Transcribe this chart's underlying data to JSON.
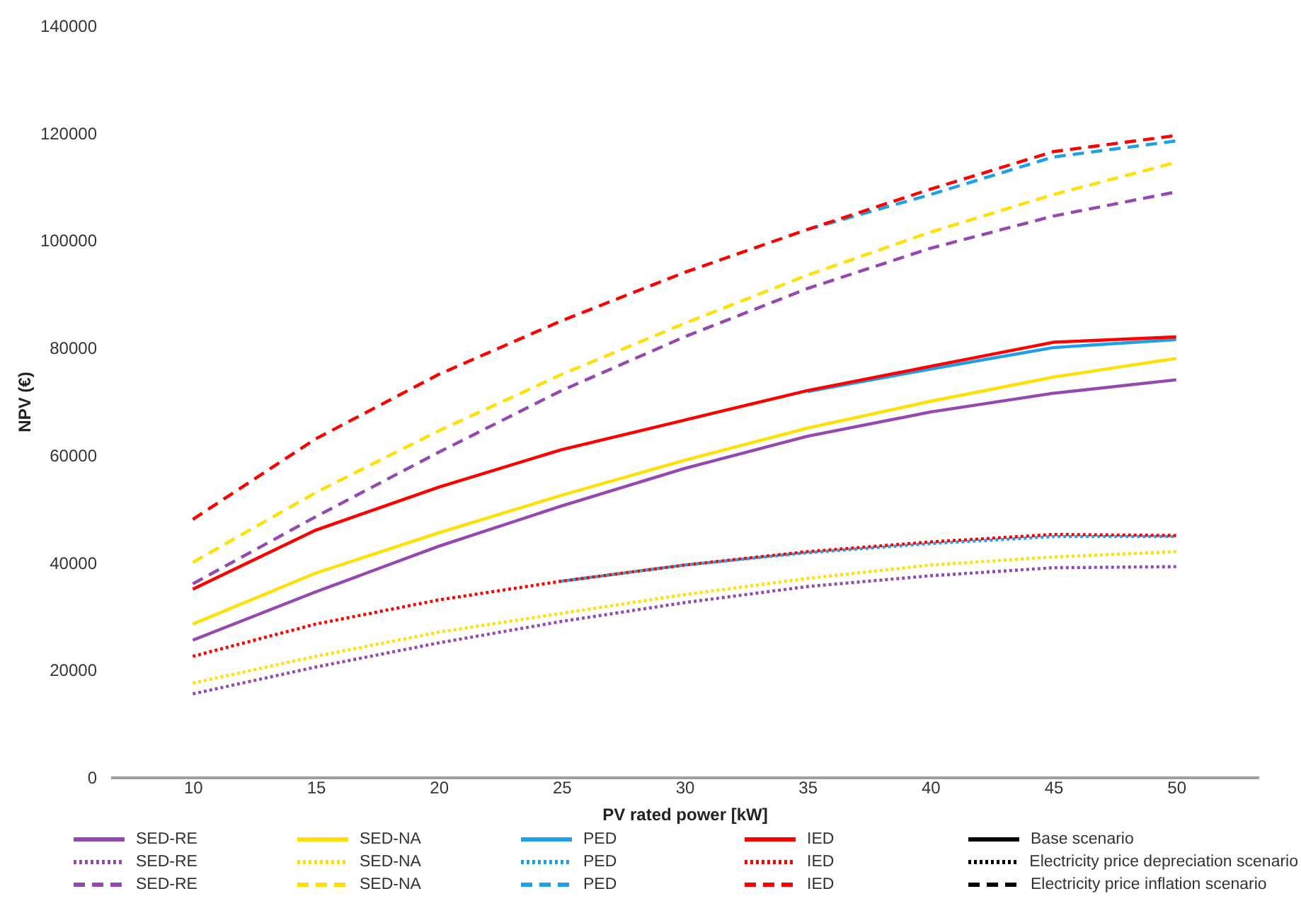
{
  "chart_data": {
    "type": "line",
    "xlabel": "PV rated power [kW]",
    "ylabel": "NPV (€)",
    "categories": [
      "10",
      "15",
      "20",
      "25",
      "30",
      "35",
      "40",
      "45",
      "50"
    ],
    "ylim": [
      0,
      140000
    ],
    "yticks": [
      0,
      20000,
      40000,
      60000,
      80000,
      100000,
      120000,
      140000
    ],
    "legend": "bottom",
    "annotations": [
      "Base scenario",
      "Electricity price depreciation scenario",
      "Electricity price inflation scenario"
    ],
    "series": [
      {
        "name": "SED-RE",
        "color": "#9448b0",
        "line_style": "solid",
        "values": [
          25500,
          34500,
          43000,
          50500,
          57500,
          63500,
          68000,
          71500,
          74000
        ]
      },
      {
        "name": "SED-NA",
        "color": "#ffe000",
        "line_style": "solid",
        "values": [
          28500,
          38000,
          45500,
          52500,
          59000,
          65000,
          70000,
          74500,
          78000
        ]
      },
      {
        "name": "PED",
        "color": "#1e9fe6",
        "line_style": "solid",
        "values": [
          null,
          null,
          null,
          null,
          null,
          71800,
          76000,
          80000,
          81500
        ]
      },
      {
        "name": "IED",
        "color": "#ff0000",
        "line_style": "solid",
        "values": [
          35000,
          46000,
          54000,
          61000,
          66500,
          72000,
          76500,
          81000,
          82000
        ]
      },
      {
        "name": "SED-RE",
        "color": "#9448b0",
        "line_style": "dotted",
        "values": [
          15500,
          20500,
          25000,
          29000,
          32500,
          35500,
          37500,
          39000,
          39200
        ]
      },
      {
        "name": "SED-NA",
        "color": "#ffe000",
        "line_style": "dotted",
        "values": [
          17500,
          22500,
          27000,
          30500,
          34000,
          37000,
          39500,
          41000,
          42000
        ]
      },
      {
        "name": "PED",
        "color": "#1e9fe6",
        "line_style": "dotted",
        "values": [
          null,
          null,
          null,
          36500,
          39500,
          41800,
          43500,
          44800,
          44800
        ]
      },
      {
        "name": "IED",
        "color": "#ff0000",
        "line_style": "dotted",
        "values": [
          22500,
          28500,
          33000,
          36500,
          39500,
          42000,
          43800,
          45200,
          45000
        ]
      },
      {
        "name": "SED-RE",
        "color": "#9448b0",
        "line_style": "dashed",
        "values": [
          36000,
          48500,
          60500,
          72000,
          82000,
          91000,
          98500,
          104500,
          109000
        ]
      },
      {
        "name": "SED-NA",
        "color": "#ffe000",
        "line_style": "dashed",
        "values": [
          40000,
          53000,
          64500,
          75000,
          84500,
          93500,
          101500,
          108500,
          114500
        ]
      },
      {
        "name": "PED",
        "color": "#1e9fe6",
        "line_style": "dashed",
        "values": [
          null,
          null,
          null,
          null,
          null,
          102000,
          108500,
          115500,
          118500
        ]
      },
      {
        "name": "IED",
        "color": "#ff0000",
        "line_style": "dashed",
        "values": [
          48000,
          63000,
          75000,
          85000,
          94000,
          102000,
          109500,
          116500,
          119500
        ]
      }
    ]
  }
}
